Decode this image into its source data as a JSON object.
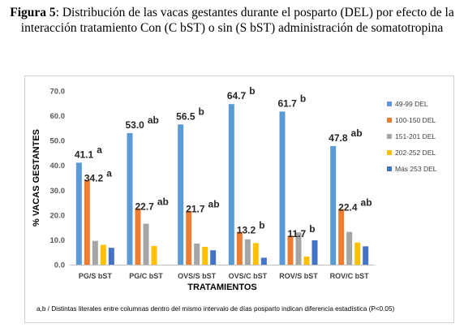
{
  "caption": {
    "label": "Figura 5",
    "line1_rest": ": Distribución de las vacas gestantes durante el posparto (DEL) por efecto de la",
    "line2": "interacción tratamiento Con (C bST) o sin (S bST) administración de somatotropina"
  },
  "chart_data": {
    "type": "bar",
    "title": "",
    "xlabel": "TRATAMIENTOS",
    "ylabel": "% VACAS GESTANTES",
    "ylim": [
      0,
      70
    ],
    "yticks": [
      "0.0",
      "10.0",
      "20.0",
      "30.0",
      "40.0",
      "50.0",
      "60.0",
      "70.0"
    ],
    "grid": false,
    "legend_position": "right",
    "categories": [
      "PG/S bST",
      "PG/C bST",
      "OVS/S bST",
      "OVS/C bST",
      "ROV/S bST",
      "ROV/C bST"
    ],
    "series": [
      {
        "name": "49-99 DEL",
        "color": "#5b9bd5",
        "values": [
          41.1,
          53.0,
          56.5,
          64.7,
          61.7,
          47.8
        ]
      },
      {
        "name": "100-150 DEL",
        "color": "#ed7d31",
        "values": [
          34.2,
          22.7,
          21.7,
          13.2,
          11.7,
          22.4
        ]
      },
      {
        "name": "151-201 DEL",
        "color": "#a5a5a5",
        "values": [
          9.6,
          16.5,
          8.5,
          10.2,
          13.0,
          13.2
        ]
      },
      {
        "name": "202-252 DEL",
        "color": "#ffc000",
        "values": [
          8.0,
          7.5,
          7.2,
          8.7,
          3.3,
          8.9
        ]
      },
      {
        "name": "Más 253 DEL",
        "color": "#4472c4",
        "values": [
          6.8,
          0,
          5.8,
          2.8,
          9.8,
          7.4
        ]
      }
    ],
    "annotations": [
      {
        "category": 0,
        "series": 0,
        "value_label": "41.1",
        "letters": "a"
      },
      {
        "category": 0,
        "series": 1,
        "value_label": "34.2",
        "letters": "a"
      },
      {
        "category": 1,
        "series": 0,
        "value_label": "53.0",
        "letters": "ab"
      },
      {
        "category": 1,
        "series": 1,
        "value_label": "22.7",
        "letters": "ab"
      },
      {
        "category": 2,
        "series": 0,
        "value_label": "56.5",
        "letters": "b"
      },
      {
        "category": 2,
        "series": 1,
        "value_label": "21.7",
        "letters": "ab"
      },
      {
        "category": 3,
        "series": 0,
        "value_label": "64.7",
        "letters": "b"
      },
      {
        "category": 3,
        "series": 1,
        "value_label": "13.2",
        "letters": "b"
      },
      {
        "category": 4,
        "series": 0,
        "value_label": "61.7",
        "letters": "b"
      },
      {
        "category": 4,
        "series": 1,
        "value_label": "11.7",
        "letters": "b"
      },
      {
        "category": 5,
        "series": 0,
        "value_label": "47.8",
        "letters": "ab"
      },
      {
        "category": 5,
        "series": 1,
        "value_label": "22.4",
        "letters": "ab"
      }
    ],
    "footnote": "a,b / Distintas literales entre columnas dentro del mismo intervalo de días posparto indican diferencia estadística (P<0.05)"
  }
}
